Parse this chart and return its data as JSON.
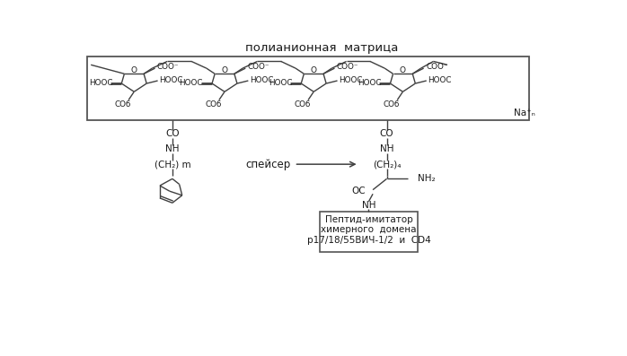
{
  "title": "полианионная  матрица",
  "bg_color": "#ffffff",
  "line_color": "#404040",
  "text_color": "#1a1a1a",
  "nat_label": "Na⁺ₙ",
  "spacer_label": "спейсер",
  "peptide_box_line1": "Пептид-имитатор",
  "peptide_box_line2": "химерного  домена",
  "peptide_box_line3": "p17/18/55ВИЧ-1/2  и  CD4"
}
